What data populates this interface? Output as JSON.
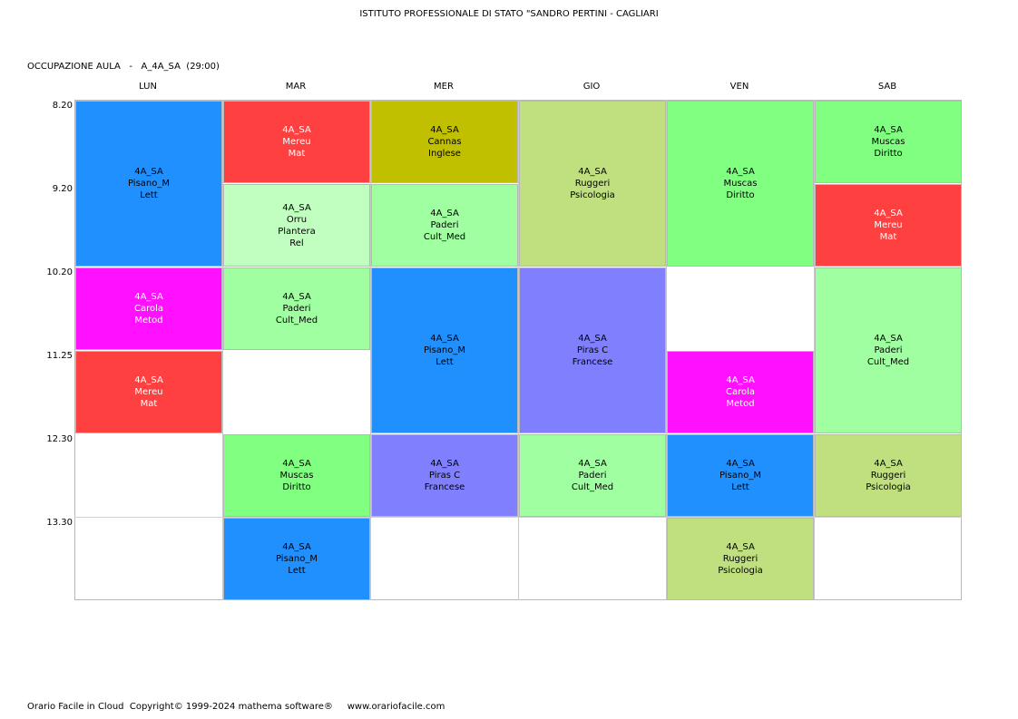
{
  "header": {
    "title": "ISTITUTO PROFESSIONALE DI STATO \"SANDRO PERTINI - CAGLIARI",
    "subtitle": "OCCUPAZIONE AULA   -   A_4A_SA  (29:00)"
  },
  "days": [
    "LUN",
    "MAR",
    "MER",
    "GIO",
    "VEN",
    "SAB"
  ],
  "times": [
    "8.20",
    "9.20",
    "10.20",
    "11.25",
    "12.30",
    "13.30"
  ],
  "lessons": [
    {
      "day": 0,
      "start": 0,
      "span": 2,
      "bg": "#2090ff",
      "fg": "#000000",
      "lines": [
        "4A_SA",
        "Pisano_M",
        "Lett"
      ]
    },
    {
      "day": 0,
      "start": 2,
      "span": 1,
      "bg": "#ff10ff",
      "fg": "#ffffff",
      "lines": [
        "4A_SA",
        "Carola",
        "Metod"
      ]
    },
    {
      "day": 0,
      "start": 3,
      "span": 1,
      "bg": "#ff4040",
      "fg": "#ffffff",
      "lines": [
        "4A_SA",
        "Mereu",
        "Mat"
      ]
    },
    {
      "day": 1,
      "start": 0,
      "span": 1,
      "bg": "#ff4040",
      "fg": "#ffffff",
      "lines": [
        "4A_SA",
        "Mereu",
        "Mat"
      ]
    },
    {
      "day": 1,
      "start": 1,
      "span": 1,
      "bg": "#c0ffc0",
      "fg": "#000000",
      "lines": [
        "4A_SA",
        "Orru",
        "Plantera",
        "Rel"
      ]
    },
    {
      "day": 1,
      "start": 2,
      "span": 1,
      "bg": "#a0ffa0",
      "fg": "#000000",
      "lines": [
        "4A_SA",
        "Paderi",
        "Cult_Med"
      ]
    },
    {
      "day": 1,
      "start": 4,
      "span": 1,
      "bg": "#80ff80",
      "fg": "#000000",
      "lines": [
        "4A_SA",
        "Muscas",
        "Diritto"
      ]
    },
    {
      "day": 1,
      "start": 5,
      "span": 1,
      "bg": "#2090ff",
      "fg": "#000000",
      "lines": [
        "4A_SA",
        "Pisano_M",
        "Lett"
      ]
    },
    {
      "day": 2,
      "start": 0,
      "span": 1,
      "bg": "#c0c000",
      "fg": "#000000",
      "lines": [
        "4A_SA",
        "Cannas",
        "Inglese"
      ]
    },
    {
      "day": 2,
      "start": 1,
      "span": 1,
      "bg": "#a0ffa0",
      "fg": "#000000",
      "lines": [
        "4A_SA",
        "Paderi",
        "Cult_Med"
      ]
    },
    {
      "day": 2,
      "start": 2,
      "span": 2,
      "bg": "#2090ff",
      "fg": "#000000",
      "lines": [
        "4A_SA",
        "Pisano_M",
        "Lett"
      ]
    },
    {
      "day": 2,
      "start": 4,
      "span": 1,
      "bg": "#8080ff",
      "fg": "#000000",
      "lines": [
        "4A_SA",
        "Piras C",
        "Francese"
      ]
    },
    {
      "day": 3,
      "start": 0,
      "span": 2,
      "bg": "#c0e080",
      "fg": "#000000",
      "lines": [
        "4A_SA",
        "Ruggeri",
        "Psicologia"
      ]
    },
    {
      "day": 3,
      "start": 2,
      "span": 2,
      "bg": "#8080ff",
      "fg": "#000000",
      "lines": [
        "4A_SA",
        "Piras C",
        "Francese"
      ]
    },
    {
      "day": 3,
      "start": 4,
      "span": 1,
      "bg": "#a0ffa0",
      "fg": "#000000",
      "lines": [
        "4A_SA",
        "Paderi",
        "Cult_Med"
      ]
    },
    {
      "day": 4,
      "start": 0,
      "span": 2,
      "bg": "#80ff80",
      "fg": "#000000",
      "lines": [
        "4A_SA",
        "Muscas",
        "Diritto"
      ]
    },
    {
      "day": 4,
      "start": 3,
      "span": 1,
      "bg": "#ff10ff",
      "fg": "#ffffff",
      "lines": [
        "4A_SA",
        "Carola",
        "Metod"
      ]
    },
    {
      "day": 4,
      "start": 4,
      "span": 1,
      "bg": "#2090ff",
      "fg": "#000000",
      "lines": [
        "4A_SA",
        "Pisano_M",
        "Lett"
      ]
    },
    {
      "day": 4,
      "start": 5,
      "span": 1,
      "bg": "#c0e080",
      "fg": "#000000",
      "lines": [
        "4A_SA",
        "Ruggeri",
        "Psicologia"
      ]
    },
    {
      "day": 5,
      "start": 0,
      "span": 1,
      "bg": "#80ff80",
      "fg": "#000000",
      "lines": [
        "4A_SA",
        "Muscas",
        "Diritto"
      ]
    },
    {
      "day": 5,
      "start": 1,
      "span": 1,
      "bg": "#ff4040",
      "fg": "#ffffff",
      "lines": [
        "4A_SA",
        "Mereu",
        "Mat"
      ]
    },
    {
      "day": 5,
      "start": 2,
      "span": 2,
      "bg": "#a0ffa0",
      "fg": "#000000",
      "lines": [
        "4A_SA",
        "Paderi",
        "Cult_Med"
      ]
    },
    {
      "day": 5,
      "start": 4,
      "span": 1,
      "bg": "#c0e080",
      "fg": "#000000",
      "lines": [
        "4A_SA",
        "Ruggeri",
        "Psicologia"
      ]
    }
  ],
  "footer": {
    "text": "Orario Facile in Cloud  Copyright© 1999-2024 mathema software®     www.orariofacile.com"
  }
}
